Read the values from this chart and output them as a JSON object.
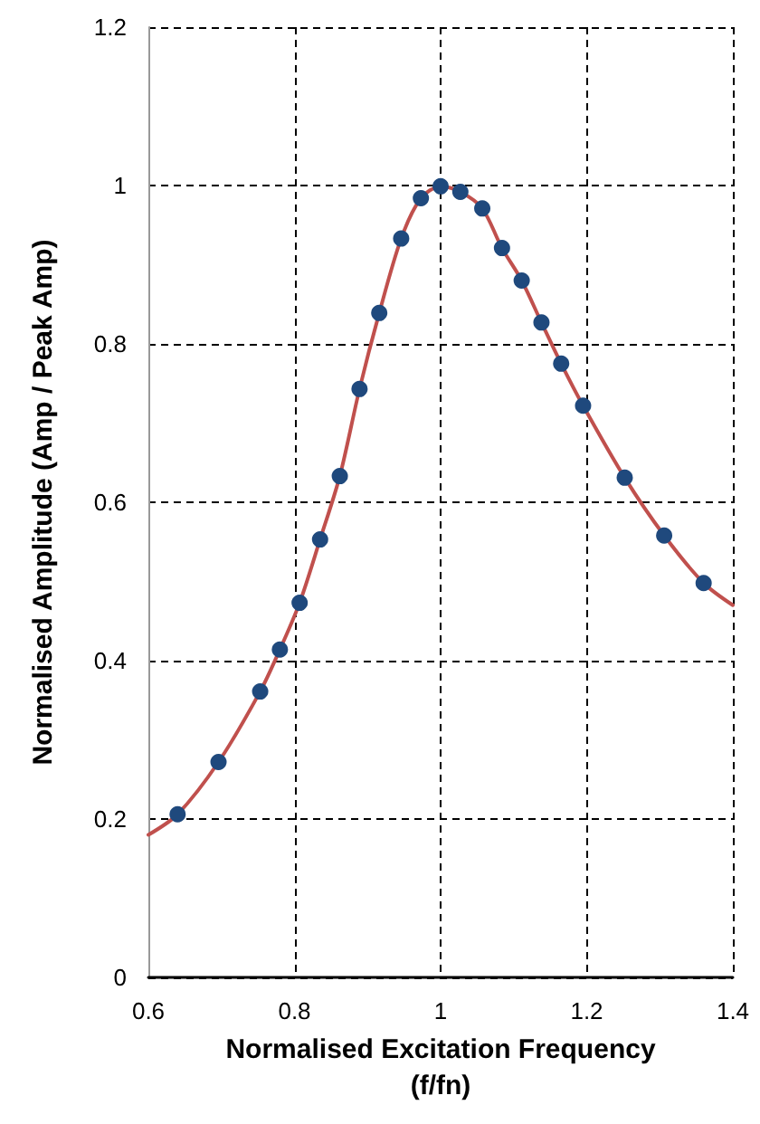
{
  "chart_data": {
    "type": "scatter",
    "xlabel": "Normalised Excitation Frequency (f/fn)",
    "ylabel": "Normalised Amplitude (Amp / Peak Amp)",
    "xlim": [
      0.6,
      1.4
    ],
    "xticks": [
      0.6,
      0.8,
      1,
      1.2,
      1.4
    ],
    "ylim": [
      0,
      1.2
    ],
    "yticks": [
      0,
      0.2,
      0.4,
      0.6,
      0.8,
      1,
      1.2
    ],
    "grid": true,
    "series": [
      {
        "type": "line",
        "color": "#c0504d",
        "marker": "none",
        "line_style": "solid",
        "x": [
          0.6,
          0.64,
          0.696,
          0.753,
          0.78,
          0.807,
          0.835,
          0.862,
          0.889,
          0.916,
          0.946,
          0.973,
          1.0,
          1.027,
          1.057,
          1.084,
          1.111,
          1.138,
          1.165,
          1.195,
          1.252,
          1.306,
          1.36,
          1.4
        ],
        "values": [
          0.18,
          0.206,
          0.272,
          0.361,
          0.414,
          0.473,
          0.553,
          0.633,
          0.743,
          0.839,
          0.933,
          0.984,
          0.999,
          0.992,
          0.971,
          0.921,
          0.88,
          0.827,
          0.775,
          0.722,
          0.631,
          0.558,
          0.498,
          0.47
        ]
      },
      {
        "color": "#1f497d",
        "marker": "circle",
        "x": [
          0.64,
          0.696,
          0.753,
          0.78,
          0.807,
          0.835,
          0.862,
          0.889,
          0.916,
          0.946,
          0.973,
          1.0,
          1.027,
          1.057,
          1.084,
          1.111,
          1.138,
          1.165,
          1.195,
          1.252,
          1.306,
          1.36
        ],
        "values": [
          0.206,
          0.272,
          0.361,
          0.414,
          0.473,
          0.553,
          0.633,
          0.743,
          0.839,
          0.933,
          0.984,
          0.999,
          0.992,
          0.971,
          0.921,
          0.88,
          0.827,
          0.775,
          0.722,
          0.631,
          0.558,
          0.498
        ]
      }
    ]
  }
}
